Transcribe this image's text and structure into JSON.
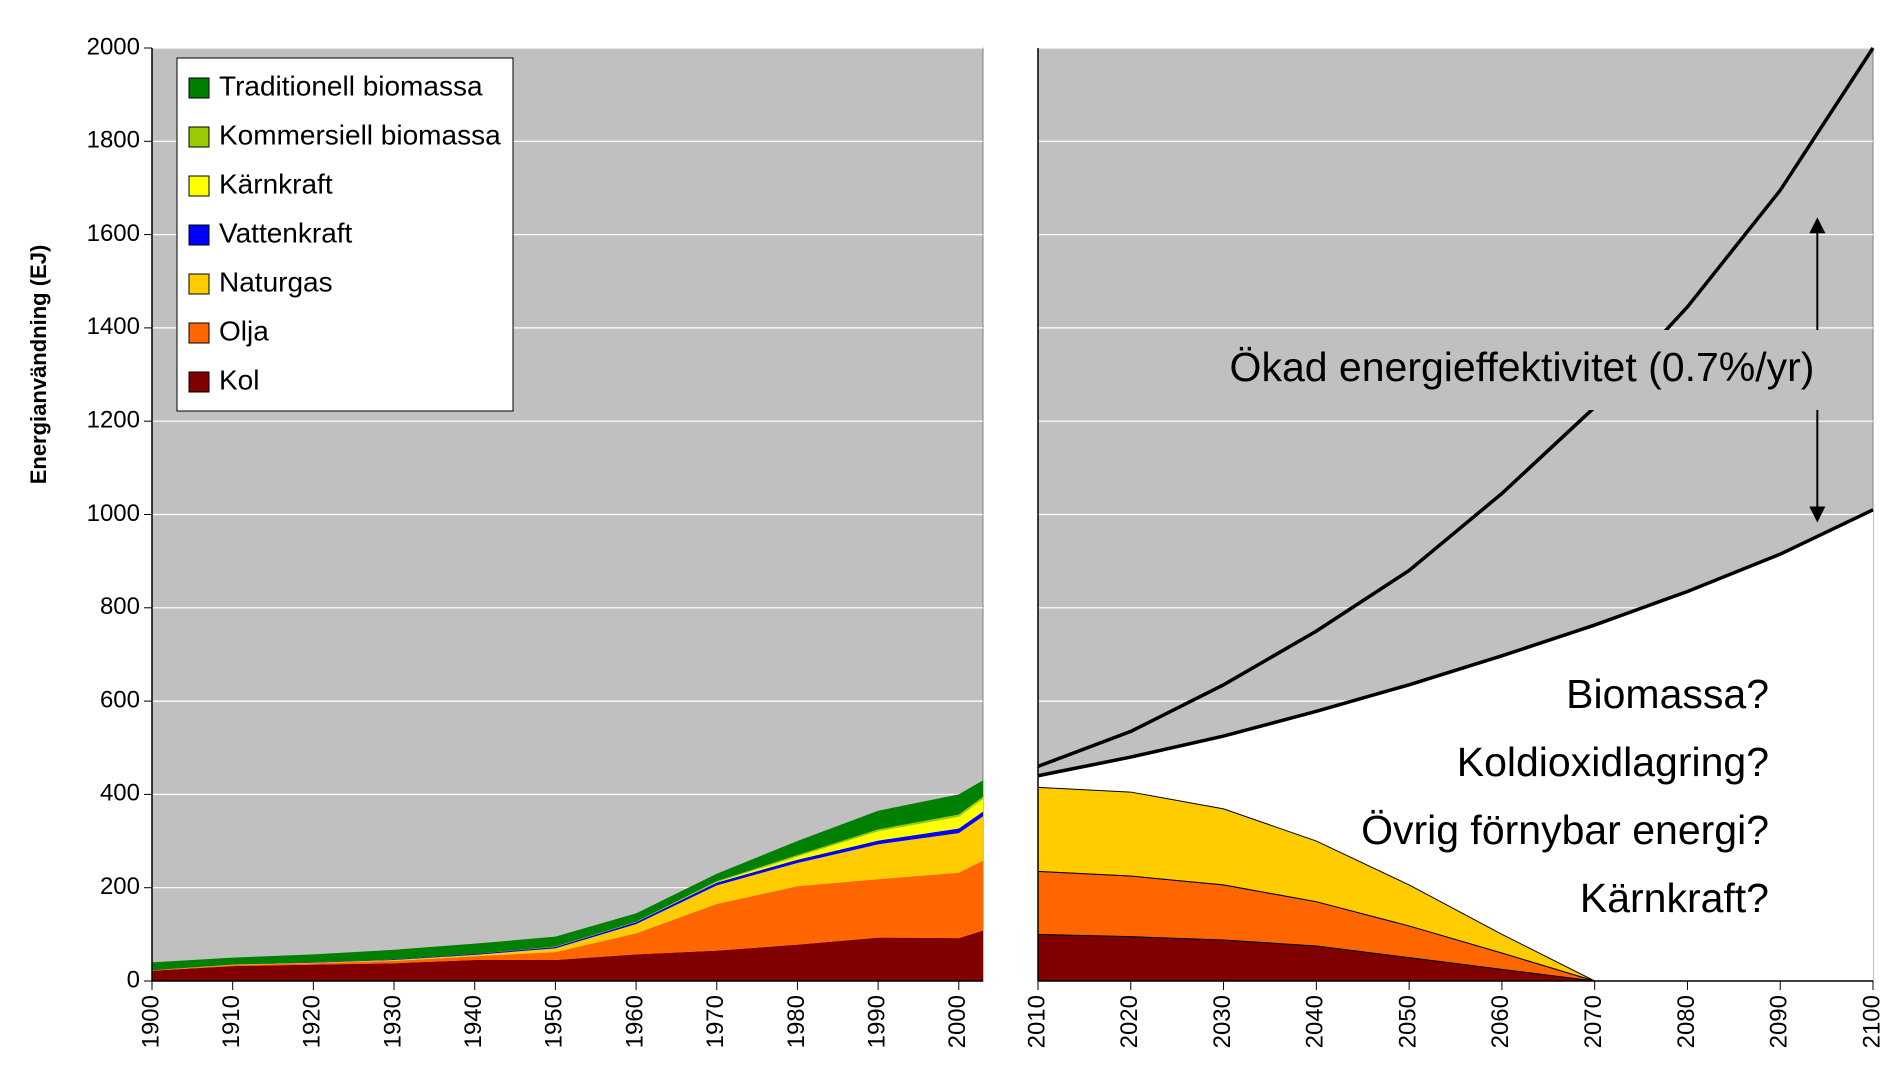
{
  "chart_data": [
    {
      "type": "area",
      "stacked": true,
      "ylabel": "Energianvändning (EJ)",
      "x": [
        1900,
        1910,
        1920,
        1930,
        1940,
        1950,
        1960,
        1970,
        1980,
        1990,
        2000,
        2003
      ],
      "xlim": [
        1900,
        2003
      ],
      "xticks": [
        1900,
        1910,
        1920,
        1930,
        1940,
        1950,
        1960,
        1970,
        1980,
        1990,
        2000
      ],
      "ylim": [
        0,
        2000
      ],
      "yticks": [
        0,
        200,
        400,
        600,
        800,
        1000,
        1200,
        1400,
        1600,
        1800,
        2000
      ],
      "grid": true,
      "legend": "upper left",
      "series": [
        {
          "name": "Kol",
          "color": "#800000",
          "values": [
            22,
            32,
            35,
            38,
            45,
            45,
            57,
            65,
            78,
            93,
            92,
            108
          ]
        },
        {
          "name": "Olja",
          "color": "#ff6600",
          "values": [
            1,
            2,
            3,
            5,
            8,
            17,
            45,
            100,
            125,
            125,
            140,
            150
          ]
        },
        {
          "name": "Naturgas",
          "color": "#ffcc00",
          "values": [
            0,
            1,
            1,
            2,
            3,
            8,
            20,
            40,
            50,
            75,
            85,
            95
          ]
        },
        {
          "name": "Vattenkraft",
          "color": "#0000ff",
          "values": [
            0,
            0,
            1,
            1,
            2,
            3,
            4,
            6,
            7,
            8,
            10,
            10
          ]
        },
        {
          "name": "Kärnkraft",
          "color": "#ffff00",
          "values": [
            0,
            0,
            0,
            0,
            0,
            0,
            0,
            1,
            7,
            20,
            25,
            27
          ]
        },
        {
          "name": "Kommersiell biomassa",
          "color": "#99cc00",
          "values": [
            0,
            0,
            0,
            0,
            0,
            1,
            1,
            2,
            3,
            4,
            5,
            5
          ]
        },
        {
          "name": "Traditionell biomassa",
          "color": "#008000",
          "values": [
            17,
            15,
            17,
            21,
            22,
            21,
            18,
            16,
            30,
            40,
            43,
            35
          ]
        }
      ]
    },
    {
      "type": "area",
      "stacked": true,
      "x": [
        2010,
        2020,
        2030,
        2040,
        2050,
        2060,
        2070,
        2080,
        2090,
        2100
      ],
      "xlim": [
        2010,
        2100
      ],
      "xticks": [
        2010,
        2020,
        2030,
        2040,
        2050,
        2060,
        2070,
        2080,
        2090,
        2100
      ],
      "ylim": [
        0,
        2000
      ],
      "yticks": [
        0,
        200,
        400,
        600,
        800,
        1000,
        1200,
        1400,
        1600,
        1800,
        2000
      ],
      "grid": true,
      "lines": [
        {
          "color": "#000000",
          "fill": "#ffffff",
          "values": [
            440,
            480,
            525,
            578,
            635,
            697,
            763,
            835,
            915,
            1010
          ]
        },
        {
          "color": "#000000",
          "values": [
            460,
            535,
            635,
            750,
            880,
            1045,
            1230,
            1445,
            1695,
            2000
          ]
        }
      ],
      "series": [
        {
          "color": "#800000",
          "values": [
            100,
            95,
            88,
            75,
            50,
            25,
            0,
            0,
            0,
            0
          ]
        },
        {
          "color": "#ff6600",
          "values": [
            135,
            130,
            118,
            95,
            68,
            35,
            0,
            0,
            0,
            0
          ]
        },
        {
          "color": "#ffcc00",
          "values": [
            180,
            180,
            163,
            130,
            88,
            40,
            0,
            0,
            0,
            0
          ]
        }
      ],
      "annotations": [
        "Ökad energieffektivitet (0.7%/yr)",
        "Biomassa?",
        "Koldioxidlagring?",
        "Övrig förnybar energi?",
        "Kärnkraft?"
      ]
    }
  ]
}
